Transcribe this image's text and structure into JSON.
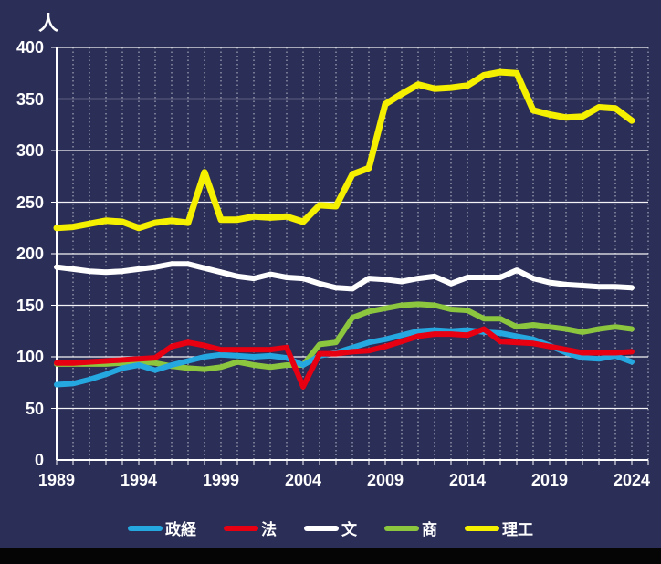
{
  "page": {
    "background_color": "#2b2e57",
    "bottom_bar_color": "#050505"
  },
  "chart_data": {
    "type": "line",
    "title": "人",
    "xlabel": "",
    "ylabel": "人",
    "ylim": [
      0,
      400
    ],
    "y_ticks": [
      0,
      50,
      100,
      150,
      200,
      250,
      300,
      350,
      400
    ],
    "x_range": [
      1989,
      2024
    ],
    "x_tick_labels": [
      "1989",
      "1994",
      "1999",
      "2004",
      "2009",
      "2014",
      "2019",
      "2024"
    ],
    "grid": "vertical dashed per year, horizontal solid every 50",
    "legend_position": "bottom-center",
    "years": [
      1989,
      1990,
      1991,
      1992,
      1993,
      1994,
      1995,
      1996,
      1997,
      1998,
      1999,
      2000,
      2001,
      2002,
      2003,
      2004,
      2005,
      2006,
      2007,
      2008,
      2009,
      2010,
      2011,
      2012,
      2013,
      2014,
      2015,
      2016,
      2017,
      2018,
      2019,
      2020,
      2021,
      2022,
      2023,
      2024
    ],
    "series": [
      {
        "name": "政経",
        "color": "#25a7e0",
        "values": [
          73,
          74,
          78,
          83,
          89,
          92,
          87,
          92,
          96,
          100,
          102,
          101,
          100,
          101,
          99,
          92,
          101,
          104,
          109,
          114,
          117,
          121,
          125,
          126,
          125,
          126,
          124,
          123,
          120,
          117,
          111,
          104,
          99,
          98,
          101,
          95
        ]
      },
      {
        "name": "法",
        "color": "#e60012",
        "values": [
          94,
          94,
          95,
          96,
          97,
          98,
          99,
          110,
          114,
          111,
          107,
          107,
          107,
          107,
          109,
          71,
          103,
          103,
          105,
          106,
          110,
          115,
          120,
          122,
          122,
          121,
          127,
          115,
          114,
          113,
          110,
          107,
          104,
          104,
          104,
          105
        ]
      },
      {
        "name": "文",
        "color": "#ffffff",
        "values": [
          187,
          185,
          183,
          182,
          183,
          185,
          187,
          190,
          190,
          186,
          182,
          178,
          176,
          180,
          177,
          176,
          171,
          167,
          166,
          176,
          175,
          173,
          176,
          178,
          171,
          177,
          177,
          177,
          184,
          176,
          172,
          170,
          169,
          168,
          168,
          167
        ]
      },
      {
        "name": "商",
        "color": "#8cc63f",
        "values": [
          93,
          93,
          93,
          93,
          94,
          95,
          94,
          91,
          89,
          88,
          90,
          95,
          92,
          90,
          92,
          92,
          112,
          114,
          138,
          144,
          147,
          150,
          151,
          150,
          146,
          145,
          137,
          137,
          129,
          131,
          129,
          127,
          124,
          127,
          129,
          127
        ]
      },
      {
        "name": "理工",
        "color": "#f5ef00",
        "values": [
          225,
          226,
          229,
          232,
          231,
          225,
          230,
          232,
          230,
          279,
          233,
          233,
          236,
          235,
          236,
          231,
          247,
          246,
          277,
          283,
          345,
          355,
          364,
          360,
          361,
          363,
          373,
          376,
          375,
          339,
          335,
          332,
          333,
          342,
          341,
          329
        ]
      }
    ],
    "draw_order": [
      2,
      3,
      0,
      1,
      4
    ],
    "line_width": {
      "default": 6,
      "理工": 7
    },
    "gridline_color": "#ffffff",
    "axis_color": "#ffffff",
    "tick_label_color": "#ffffff"
  }
}
